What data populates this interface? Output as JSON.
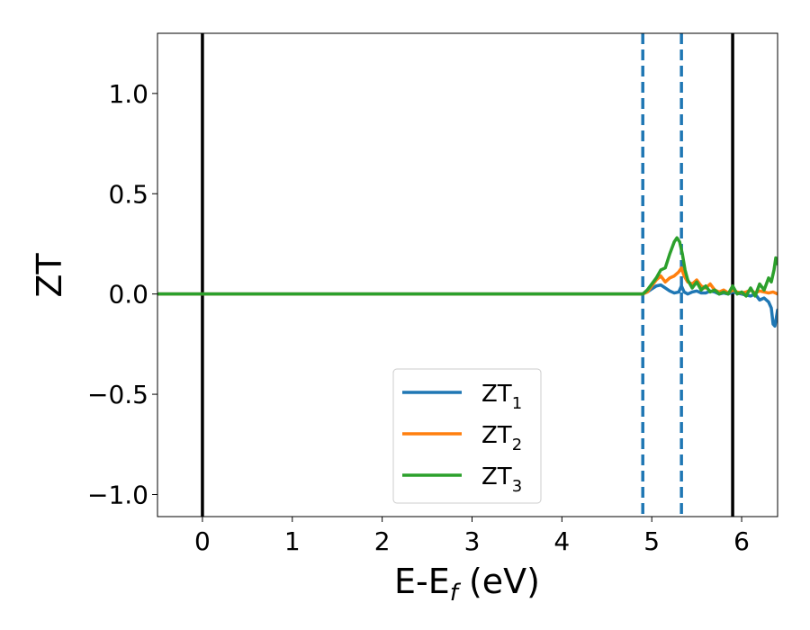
{
  "chart_data": {
    "type": "line",
    "xlabel": {
      "main": "E-E",
      "sub": "f",
      "unit": " (eV)"
    },
    "ylabel": "ZT",
    "xlim": [
      -0.5,
      6.4
    ],
    "ylim": [
      -1.11,
      1.3
    ],
    "xticks": [
      0,
      1,
      2,
      3,
      4,
      5,
      6
    ],
    "yticks": [
      1.0,
      0.5,
      0.0,
      -0.5,
      -1.0
    ],
    "ytick_labels": [
      "1.0",
      "0.5",
      "0.0",
      "−0.5",
      "−1.0"
    ],
    "grid": false,
    "legend_position": "lower-center",
    "vertical_lines": [
      {
        "x": 0.0,
        "style": "solid",
        "color": "#000000"
      },
      {
        "x": 5.9,
        "style": "solid",
        "color": "#000000"
      },
      {
        "x": 4.9,
        "style": "dashed",
        "color": "#1f77b4"
      },
      {
        "x": 5.33,
        "style": "dashed",
        "color": "#1f77b4"
      }
    ],
    "series": [
      {
        "name": "ZT",
        "sub": "1",
        "color": "#1f77b4",
        "x": [
          -0.5,
          4.9,
          4.95,
          5.0,
          5.05,
          5.1,
          5.15,
          5.2,
          5.25,
          5.3,
          5.33,
          5.36,
          5.4,
          5.45,
          5.5,
          5.55,
          5.6,
          5.65,
          5.7,
          5.75,
          5.8,
          5.85,
          5.9,
          5.95,
          6.0,
          6.05,
          6.1,
          6.15,
          6.2,
          6.25,
          6.3,
          6.33,
          6.35,
          6.37,
          6.4
        ],
        "y": [
          0.0,
          0.0,
          0.01,
          0.025,
          0.04,
          0.045,
          0.03,
          0.015,
          0.005,
          0.01,
          0.04,
          0.01,
          0.0,
          0.01,
          0.015,
          0.005,
          0.005,
          0.015,
          0.01,
          0.0,
          0.005,
          0.0,
          0.01,
          0.005,
          0.0,
          -0.005,
          -0.01,
          0.0,
          -0.03,
          -0.02,
          -0.04,
          -0.07,
          -0.15,
          -0.16,
          -0.08
        ]
      },
      {
        "name": "ZT",
        "sub": "2",
        "color": "#ff7f0e",
        "x": [
          -0.5,
          4.9,
          4.95,
          5.0,
          5.05,
          5.1,
          5.15,
          5.2,
          5.25,
          5.3,
          5.33,
          5.36,
          5.4,
          5.45,
          5.5,
          5.55,
          5.6,
          5.65,
          5.7,
          5.75,
          5.8,
          5.85,
          5.9,
          5.95,
          6.0,
          6.05,
          6.1,
          6.15,
          6.2,
          6.25,
          6.3,
          6.35,
          6.4
        ],
        "y": [
          0.0,
          0.0,
          0.01,
          0.04,
          0.07,
          0.09,
          0.06,
          0.08,
          0.09,
          0.11,
          0.13,
          0.09,
          0.06,
          0.05,
          0.07,
          0.04,
          0.03,
          0.05,
          0.02,
          0.01,
          0.02,
          0.005,
          0.02,
          0.01,
          0.005,
          0.01,
          0.02,
          0.005,
          0.015,
          0.01,
          0.005,
          0.01,
          0.0
        ]
      },
      {
        "name": "ZT",
        "sub": "3",
        "color": "#2ca02c",
        "x": [
          -0.5,
          4.9,
          4.95,
          5.0,
          5.05,
          5.1,
          5.15,
          5.2,
          5.25,
          5.28,
          5.31,
          5.34,
          5.37,
          5.4,
          5.45,
          5.5,
          5.55,
          5.6,
          5.65,
          5.7,
          5.75,
          5.8,
          5.85,
          5.9,
          5.95,
          6.0,
          6.05,
          6.1,
          6.15,
          6.2,
          6.25,
          6.3,
          6.33,
          6.36,
          6.38,
          6.4
        ],
        "y": [
          0.0,
          0.0,
          0.02,
          0.05,
          0.08,
          0.12,
          0.13,
          0.2,
          0.26,
          0.28,
          0.26,
          0.2,
          0.12,
          0.07,
          0.03,
          0.06,
          0.02,
          0.04,
          0.01,
          0.02,
          0.0,
          0.01,
          0.0,
          0.04,
          0.0,
          0.01,
          -0.01,
          0.03,
          -0.01,
          0.05,
          0.02,
          0.08,
          0.06,
          0.12,
          0.18,
          0.15
        ]
      }
    ]
  }
}
